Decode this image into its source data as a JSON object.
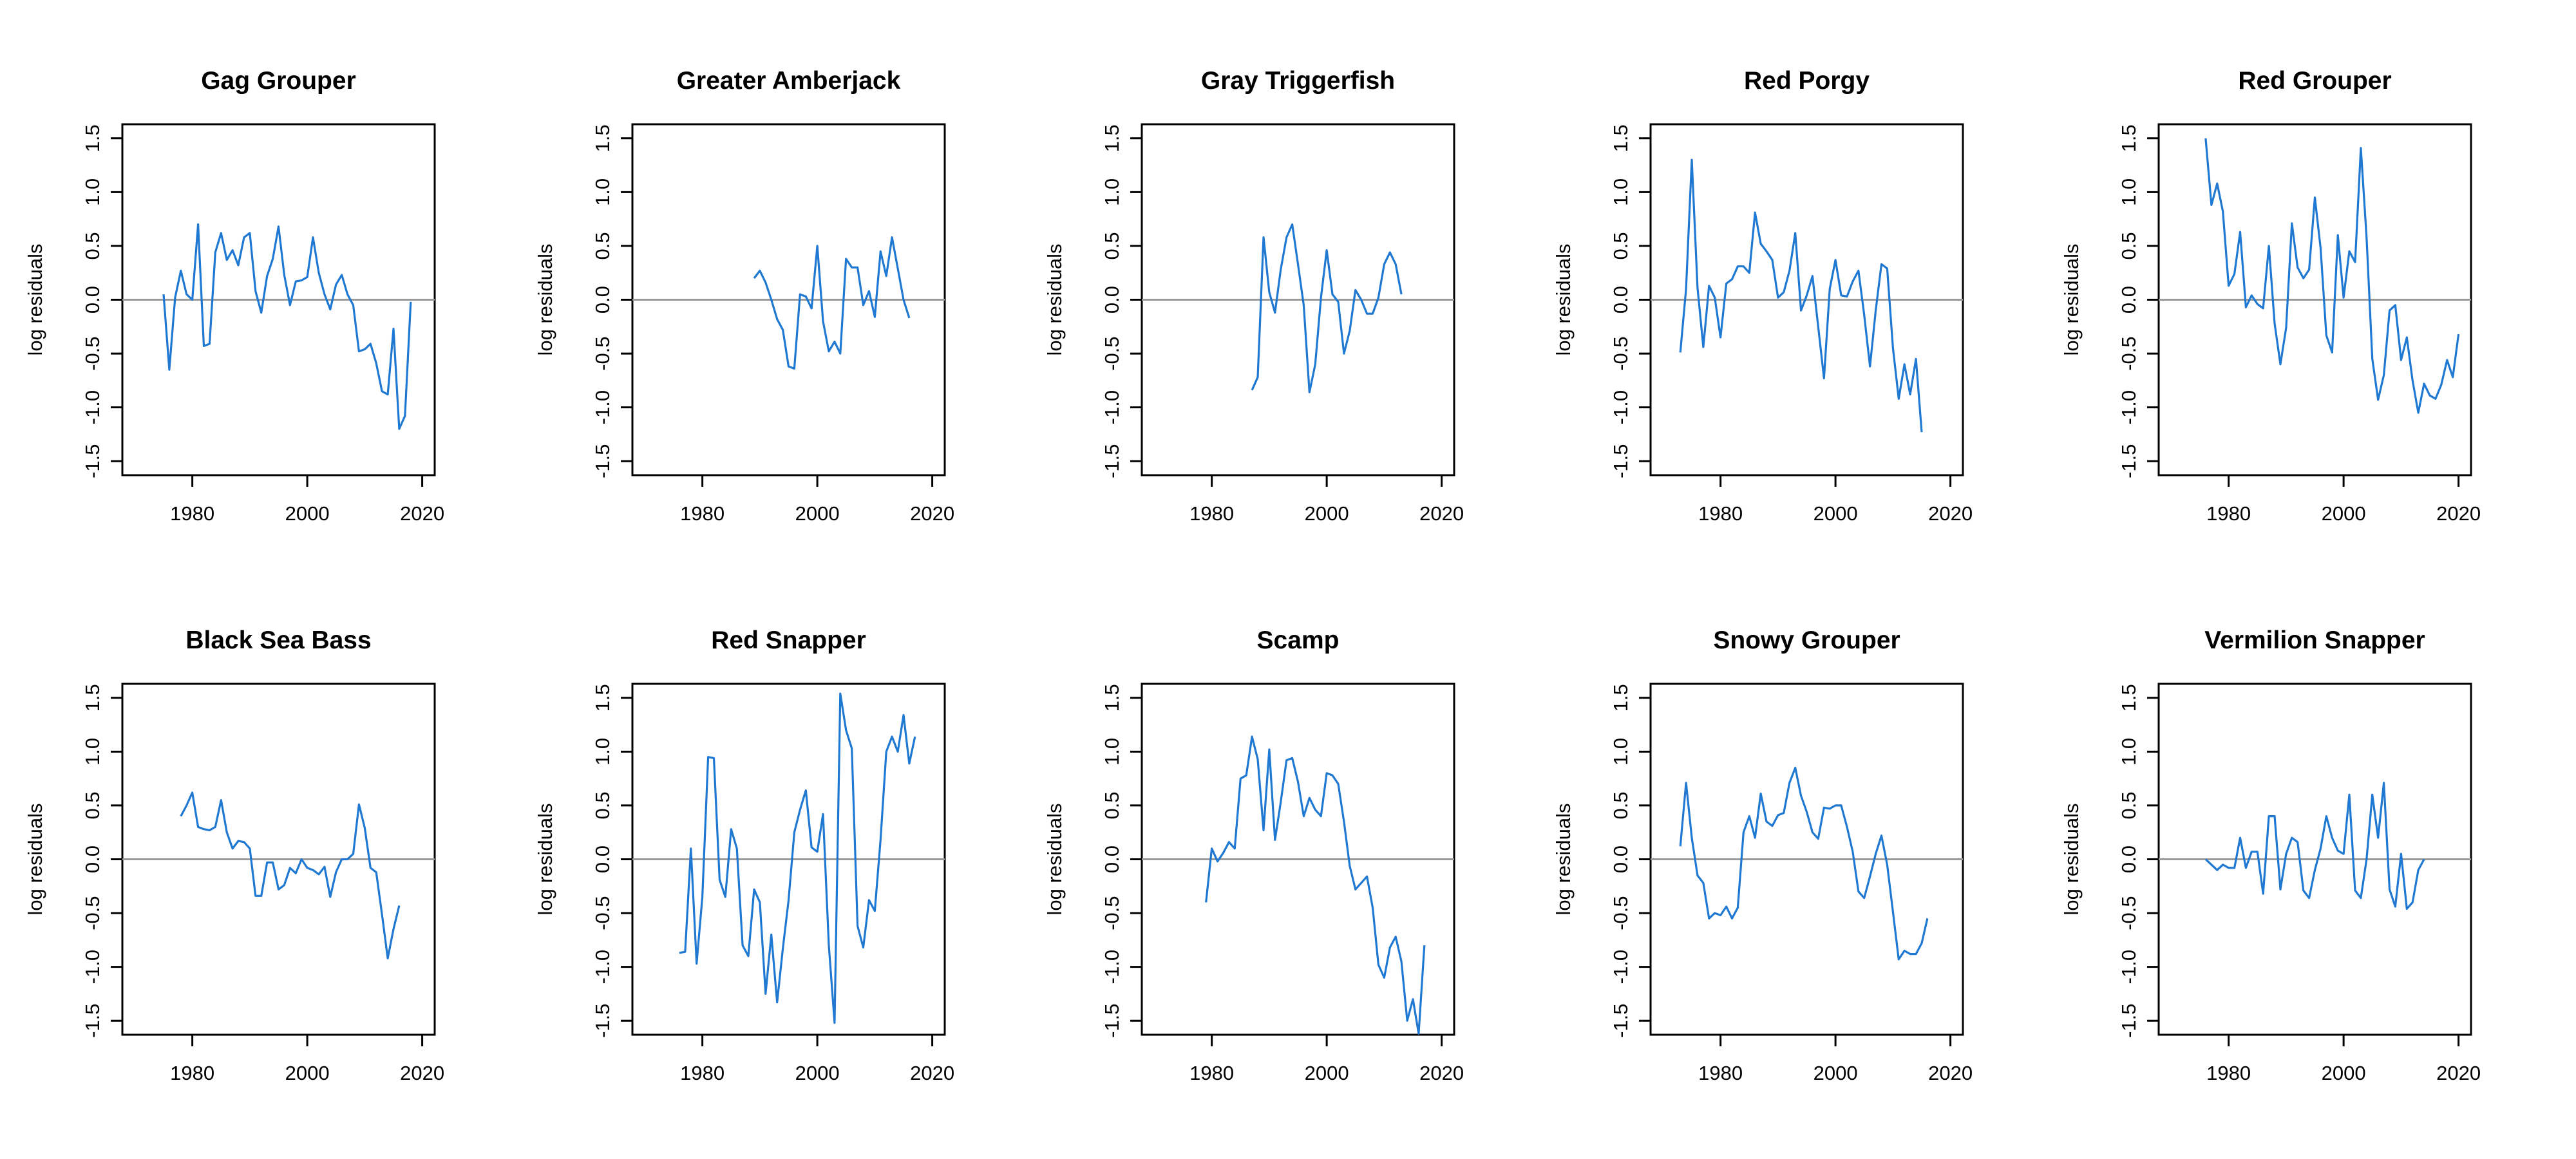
{
  "chart_data": [
    {
      "type": "line",
      "title": "Gag Grouper",
      "xlabel": "",
      "ylabel": "log residuals",
      "xlim": [
        1970,
        2020
      ],
      "ylim": [
        -1.5,
        1.5
      ],
      "reference_line": 0,
      "xticks": [
        1980,
        2000,
        2020
      ],
      "yticks": [
        -1.5,
        -1.0,
        -0.5,
        0.0,
        0.5,
        1.0,
        1.5
      ],
      "x_start": 1975,
      "values": [
        0.05,
        -0.65,
        0.02,
        0.27,
        0.05,
        0.0,
        0.7,
        -0.43,
        -0.41,
        0.44,
        0.62,
        0.37,
        0.46,
        0.32,
        0.58,
        0.62,
        0.08,
        -0.12,
        0.22,
        0.38,
        0.68,
        0.23,
        -0.05,
        0.17,
        0.18,
        0.21,
        0.58,
        0.25,
        0.05,
        -0.09,
        0.14,
        0.23,
        0.05,
        -0.05,
        -0.48,
        -0.46,
        -0.41,
        -0.59,
        -0.85,
        -0.88,
        -0.27,
        -1.2,
        -1.08,
        -0.02
      ]
    },
    {
      "type": "line",
      "title": "Greater Amberjack",
      "xlabel": "",
      "ylabel": "log residuals",
      "xlim": [
        1970,
        2020
      ],
      "ylim": [
        -1.5,
        1.5
      ],
      "reference_line": 0,
      "xticks": [
        1980,
        2000,
        2020
      ],
      "yticks": [
        -1.5,
        -1.0,
        -0.5,
        0.0,
        0.5,
        1.0,
        1.5
      ],
      "x_start": 1989,
      "values": [
        0.2,
        0.27,
        0.16,
        0.0,
        -0.18,
        -0.28,
        -0.62,
        -0.64,
        0.05,
        0.03,
        -0.08,
        0.5,
        -0.2,
        -0.48,
        -0.39,
        -0.5,
        0.38,
        0.3,
        0.3,
        -0.05,
        0.08,
        -0.16,
        0.45,
        0.22,
        0.58,
        0.29,
        0.0,
        -0.17
      ]
    },
    {
      "type": "line",
      "title": "Gray Triggerfish",
      "xlabel": "",
      "ylabel": "log residuals",
      "xlim": [
        1970,
        2020
      ],
      "ylim": [
        -1.5,
        1.5
      ],
      "reference_line": 0,
      "xticks": [
        1980,
        2000,
        2020
      ],
      "yticks": [
        -1.5,
        -1.0,
        -0.5,
        0.0,
        0.5,
        1.0,
        1.5
      ],
      "x_start": 1987,
      "values": [
        -0.84,
        -0.72,
        0.58,
        0.07,
        -0.12,
        0.28,
        0.58,
        0.7,
        0.33,
        -0.05,
        -0.86,
        -0.6,
        0.02,
        0.46,
        0.05,
        -0.02,
        -0.5,
        -0.29,
        0.09,
        0.0,
        -0.13,
        -0.13,
        0.02,
        0.33,
        0.44,
        0.33,
        0.05
      ]
    },
    {
      "type": "line",
      "title": "Red Porgy",
      "xlabel": "",
      "ylabel": "log residuals",
      "xlim": [
        1970,
        2020
      ],
      "ylim": [
        -1.5,
        1.5
      ],
      "reference_line": 0,
      "xticks": [
        1980,
        2000,
        2020
      ],
      "yticks": [
        -1.5,
        -1.0,
        -0.5,
        0.0,
        0.5,
        1.0,
        1.5
      ],
      "x_start": 1973,
      "values": [
        -0.49,
        0.1,
        1.3,
        0.11,
        -0.44,
        0.13,
        0.02,
        -0.35,
        0.15,
        0.19,
        0.31,
        0.31,
        0.25,
        0.81,
        0.52,
        0.45,
        0.37,
        0.02,
        0.07,
        0.27,
        0.62,
        -0.1,
        0.04,
        0.22,
        -0.25,
        -0.73,
        0.1,
        0.37,
        0.04,
        0.03,
        0.17,
        0.27,
        -0.14,
        -0.62,
        -0.1,
        0.33,
        0.29,
        -0.45,
        -0.92,
        -0.6,
        -0.88,
        -0.55,
        -1.23
      ]
    },
    {
      "type": "line",
      "title": "Red Grouper",
      "xlabel": "",
      "ylabel": "log residuals",
      "xlim": [
        1970,
        2020
      ],
      "ylim": [
        -1.5,
        1.5
      ],
      "reference_line": 0,
      "xticks": [
        1980,
        2000,
        2020
      ],
      "yticks": [
        -1.5,
        -1.0,
        -0.5,
        0.0,
        0.5,
        1.0,
        1.5
      ],
      "x_start": 1976,
      "values": [
        1.5,
        0.88,
        1.08,
        0.82,
        0.13,
        0.24,
        0.63,
        -0.07,
        0.04,
        -0.04,
        -0.08,
        0.5,
        -0.22,
        -0.6,
        -0.26,
        0.71,
        0.3,
        0.2,
        0.28,
        0.95,
        0.48,
        -0.33,
        -0.49,
        0.6,
        0.02,
        0.45,
        0.35,
        1.41,
        0.58,
        -0.55,
        -0.93,
        -0.7,
        -0.1,
        -0.05,
        -0.56,
        -0.35,
        -0.75,
        -1.05,
        -0.78,
        -0.89,
        -0.92,
        -0.79,
        -0.56,
        -0.72,
        -0.32
      ]
    },
    {
      "type": "line",
      "title": "Black Sea Bass",
      "xlabel": "",
      "ylabel": "log residuals",
      "xlim": [
        1970,
        2020
      ],
      "ylim": [
        -1.5,
        1.5
      ],
      "reference_line": 0,
      "xticks": [
        1980,
        2000,
        2020
      ],
      "yticks": [
        -1.5,
        -1.0,
        -0.5,
        0.0,
        0.5,
        1.0,
        1.5
      ],
      "x_start": 1978,
      "values": [
        0.4,
        0.5,
        0.62,
        0.3,
        0.28,
        0.27,
        0.3,
        0.55,
        0.25,
        0.1,
        0.17,
        0.16,
        0.1,
        -0.34,
        -0.34,
        -0.03,
        -0.03,
        -0.28,
        -0.24,
        -0.08,
        -0.13,
        0.0,
        -0.08,
        -0.1,
        -0.14,
        -0.07,
        -0.35,
        -0.12,
        0.0,
        0.0,
        0.05,
        0.51,
        0.29,
        -0.08,
        -0.12,
        -0.51,
        -0.92,
        -0.65,
        -0.43
      ]
    },
    {
      "type": "line",
      "title": "Red Snapper",
      "xlabel": "",
      "ylabel": "log residuals",
      "xlim": [
        1970,
        2020
      ],
      "ylim": [
        -1.5,
        1.5
      ],
      "reference_line": 0,
      "xticks": [
        1980,
        2000,
        2020
      ],
      "yticks": [
        -1.5,
        -1.0,
        -0.5,
        0.0,
        0.5,
        1.0,
        1.5
      ],
      "x_start": 1976,
      "values": [
        -0.87,
        -0.86,
        0.1,
        -0.97,
        -0.35,
        0.95,
        0.94,
        -0.19,
        -0.35,
        0.28,
        0.1,
        -0.8,
        -0.9,
        -0.28,
        -0.4,
        -1.25,
        -0.7,
        -1.33,
        -0.83,
        -0.38,
        0.25,
        0.46,
        0.64,
        0.11,
        0.07,
        0.42,
        -0.8,
        -1.52,
        1.54,
        1.2,
        1.03,
        -0.62,
        -0.82,
        -0.38,
        -0.48,
        0.18,
        1.0,
        1.14,
        1.0,
        1.34,
        0.89,
        1.14
      ]
    },
    {
      "type": "line",
      "title": "Scamp",
      "xlabel": "",
      "ylabel": "log residuals",
      "xlim": [
        1970,
        2020
      ],
      "ylim": [
        -1.5,
        1.5
      ],
      "reference_line": 0,
      "xticks": [
        1980,
        2000,
        2020
      ],
      "yticks": [
        -1.5,
        -1.0,
        -0.5,
        0.0,
        0.5,
        1.0,
        1.5
      ],
      "x_start": 1979,
      "values": [
        -0.4,
        0.1,
        -0.02,
        0.06,
        0.16,
        0.1,
        0.75,
        0.78,
        1.14,
        0.93,
        0.27,
        1.02,
        0.18,
        0.53,
        0.92,
        0.94,
        0.72,
        0.4,
        0.57,
        0.46,
        0.4,
        0.8,
        0.78,
        0.7,
        0.35,
        -0.06,
        -0.28,
        -0.22,
        -0.16,
        -0.45,
        -0.98,
        -1.1,
        -0.82,
        -0.72,
        -0.95,
        -1.5,
        -1.3,
        -1.62,
        -0.8
      ]
    },
    {
      "type": "line",
      "title": "Snowy Grouper",
      "xlabel": "",
      "ylabel": "log residuals",
      "xlim": [
        1970,
        2020
      ],
      "ylim": [
        -1.5,
        1.5
      ],
      "reference_line": 0,
      "xticks": [
        1980,
        2000,
        2020
      ],
      "yticks": [
        -1.5,
        -1.0,
        -0.5,
        0.0,
        0.5,
        1.0,
        1.5
      ],
      "x_start": 1973,
      "values": [
        0.12,
        0.71,
        0.2,
        -0.15,
        -0.22,
        -0.55,
        -0.5,
        -0.52,
        -0.44,
        -0.55,
        -0.45,
        0.25,
        0.4,
        0.2,
        0.61,
        0.35,
        0.31,
        0.41,
        0.43,
        0.71,
        0.85,
        0.59,
        0.44,
        0.25,
        0.19,
        0.48,
        0.47,
        0.5,
        0.5,
        0.3,
        0.07,
        -0.3,
        -0.36,
        -0.16,
        0.05,
        0.22,
        -0.05,
        -0.49,
        -0.93,
        -0.85,
        -0.88,
        -0.88,
        -0.78,
        -0.55
      ]
    },
    {
      "type": "line",
      "title": "Vermilion Snapper",
      "xlabel": "",
      "ylabel": "log residuals",
      "xlim": [
        1970,
        2020
      ],
      "ylim": [
        -1.5,
        1.5
      ],
      "reference_line": 0,
      "xticks": [
        1980,
        2000,
        2020
      ],
      "yticks": [
        -1.5,
        -1.0,
        -0.5,
        0.0,
        0.5,
        1.0,
        1.5
      ],
      "x_start": 1976,
      "values": [
        0.0,
        -0.05,
        -0.1,
        -0.05,
        -0.08,
        -0.08,
        0.2,
        -0.08,
        0.07,
        0.07,
        -0.32,
        0.4,
        0.4,
        -0.28,
        0.05,
        0.2,
        0.16,
        -0.29,
        -0.36,
        -0.1,
        0.1,
        0.4,
        0.2,
        0.08,
        0.05,
        0.6,
        -0.29,
        -0.36,
        0.0,
        0.6,
        0.2,
        0.71,
        -0.28,
        -0.44,
        0.05,
        -0.46,
        -0.4,
        -0.1,
        0.0
      ]
    }
  ],
  "colors": {
    "series": "#1f78d1",
    "reference_line": "#9a9a9a",
    "axes": "#000000"
  }
}
